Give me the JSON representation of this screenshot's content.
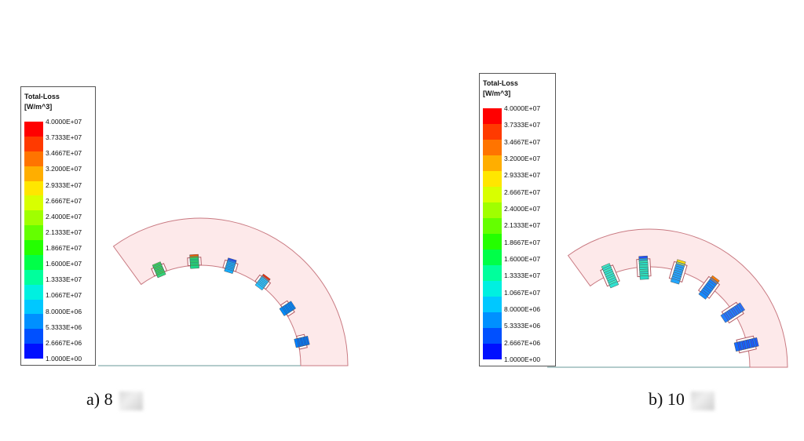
{
  "panels": [
    {
      "id": "a",
      "caption": "a) 8",
      "legend": {
        "title_line1": "Total-Loss",
        "title_line2": "[W/m^3]",
        "labels": [
          "4.0000E+07",
          "3.7333E+07",
          "3.4667E+07",
          "3.2000E+07",
          "2.9333E+07",
          "2.6667E+07",
          "2.4000E+07",
          "2.1333E+07",
          "1.8667E+07",
          "1.6000E+07",
          "1.3333E+07",
          "1.0667E+07",
          "8.0000E+06",
          "5.3333E+06",
          "2.6667E+06",
          "1.0000E+00"
        ]
      },
      "slots_per_pole": 6,
      "conductors_per_slot": 8
    },
    {
      "id": "b",
      "caption": "b) 10",
      "legend": {
        "title_line1": "Total-Loss",
        "title_line2": "[W/m^3]",
        "labels": [
          "4.0000E+07",
          "3.7333E+07",
          "3.4667E+07",
          "3.2000E+07",
          "2.9333E+07",
          "2.6667E+07",
          "2.4000E+07",
          "2.1333E+07",
          "1.8667E+07",
          "1.6000E+07",
          "1.3333E+07",
          "1.0667E+07",
          "8.0000E+06",
          "5.3333E+06",
          "2.6667E+06",
          "1.0000E+00"
        ]
      },
      "slots_per_pole": 6,
      "conductors_per_slot": 10
    }
  ],
  "colorscale": [
    "#ff0000",
    "#ff3a00",
    "#ff7400",
    "#ffae00",
    "#ffe600",
    "#d8ff00",
    "#a0ff00",
    "#64ff00",
    "#24ff00",
    "#00ff48",
    "#00ff9c",
    "#00f0e0",
    "#00c8ff",
    "#0090ff",
    "#0050ff",
    "#0010ff"
  ],
  "colors": {
    "core_fill": "#fde9ea",
    "core_stroke": "#c97a82",
    "slot_fill": "#ffffff",
    "slot_stroke": "#b35c65",
    "conductor_stroke": "#555555"
  }
}
